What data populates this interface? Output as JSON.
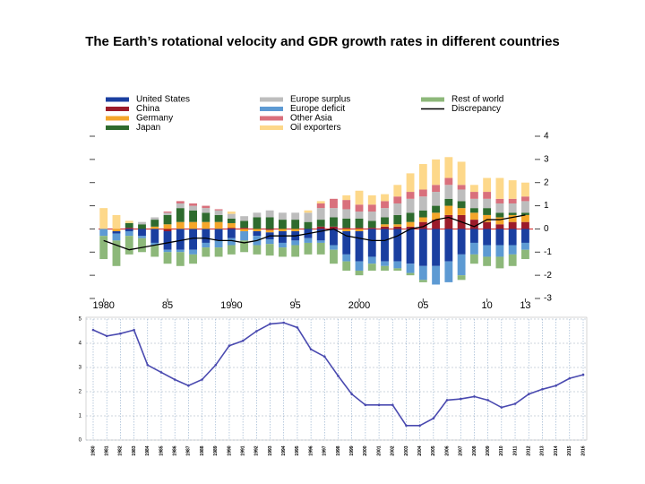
{
  "title": "The Earth’s rotational velocity and GDR growth rates in different countries",
  "chart_data": [
    {
      "type": "stacked_bar",
      "x": [
        1980,
        1981,
        1982,
        1983,
        1984,
        1985,
        1986,
        1987,
        1988,
        1989,
        1990,
        1991,
        1992,
        1993,
        1994,
        1995,
        1996,
        1997,
        1998,
        1999,
        2000,
        2001,
        2002,
        2003,
        2004,
        2005,
        2006,
        2007,
        2008,
        2009,
        2010,
        2011,
        2012,
        2013
      ],
      "xlim": [
        1979.6,
        2013.6
      ],
      "xticks": [
        1980,
        {
          "value": 1985,
          "label": "85"
        },
        1990,
        {
          "value": 1995,
          "label": "95"
        },
        2000,
        {
          "value": 2005,
          "label": "05"
        },
        {
          "value": 2010,
          "label": "10"
        },
        {
          "value": 2013,
          "label": "13"
        }
      ],
      "ylim": [
        -3,
        4
      ],
      "yticks": [
        -3,
        -2,
        -1,
        0,
        1,
        2,
        3,
        4
      ],
      "series": [
        {
          "name": "United States",
          "color": "#1a3fa0",
          "values": [
            0,
            -0.1,
            -0.1,
            -0.3,
            -0.6,
            -0.8,
            -0.9,
            -0.9,
            -0.6,
            -0.5,
            -0.4,
            0,
            -0.2,
            -0.3,
            -0.5,
            -0.4,
            -0.4,
            -0.5,
            -0.7,
            -1.0,
            -1.3,
            -1.2,
            -1.4,
            -1.4,
            -1.5,
            -1.6,
            -1.6,
            -1.4,
            -1.1,
            -0.6,
            -0.7,
            -0.7,
            -0.7,
            -0.6
          ]
        },
        {
          "name": "China",
          "color": "#9b1b2a",
          "values": [
            0,
            0,
            0.05,
            0,
            0,
            -0.1,
            0,
            0,
            0,
            0,
            0.05,
            0.05,
            0,
            -0.05,
            0,
            0,
            0,
            0.1,
            0.1,
            0.05,
            0.05,
            0.05,
            0.1,
            0.1,
            0.1,
            0.3,
            0.4,
            0.6,
            0.6,
            0.4,
            0.3,
            0.2,
            0.3,
            0.3
          ]
        },
        {
          "name": "Germany",
          "color": "#f4a62a",
          "values": [
            0,
            -0.1,
            0,
            0,
            0.1,
            0.2,
            0.3,
            0.3,
            0.3,
            0.3,
            0.2,
            -0.1,
            -0.1,
            -0.1,
            -0.1,
            -0.1,
            0,
            0,
            0,
            -0.1,
            -0.1,
            0,
            0.1,
            0.1,
            0.2,
            0.2,
            0.3,
            0.4,
            0.3,
            0.3,
            0.3,
            0.3,
            0.3,
            0.3
          ]
        },
        {
          "name": "Japan",
          "color": "#2e6b2e",
          "values": [
            0,
            0,
            0.2,
            0.2,
            0.3,
            0.4,
            0.6,
            0.5,
            0.4,
            0.3,
            0.2,
            0.3,
            0.5,
            0.5,
            0.4,
            0.4,
            0.3,
            0.3,
            0.4,
            0.4,
            0.4,
            0.3,
            0.3,
            0.4,
            0.4,
            0.3,
            0.3,
            0.3,
            0.3,
            0.2,
            0.3,
            0.2,
            0.1,
            0.1
          ]
        },
        {
          "name": "Europe surplus",
          "color": "#bdbdbd",
          "values": [
            0,
            0,
            0,
            0.1,
            0.1,
            0.1,
            0.2,
            0.2,
            0.2,
            0.2,
            0.2,
            0.2,
            0.2,
            0.3,
            0.3,
            0.3,
            0.4,
            0.5,
            0.4,
            0.4,
            0.3,
            0.4,
            0.4,
            0.5,
            0.6,
            0.6,
            0.6,
            0.6,
            0.5,
            0.4,
            0.4,
            0.4,
            0.4,
            0.5
          ]
        },
        {
          "name": "Europe deficit",
          "color": "#5d9ad3",
          "values": [
            -0.3,
            -0.3,
            -0.2,
            -0.1,
            -0.1,
            -0.1,
            -0.1,
            -0.2,
            -0.2,
            -0.3,
            -0.3,
            -0.4,
            -0.4,
            -0.2,
            -0.2,
            -0.2,
            -0.2,
            -0.1,
            -0.2,
            -0.3,
            -0.4,
            -0.3,
            -0.2,
            -0.3,
            -0.4,
            -0.6,
            -0.8,
            -0.9,
            -0.9,
            -0.5,
            -0.5,
            -0.5,
            -0.4,
            -0.3
          ]
        },
        {
          "name": "Other Asia",
          "color": "#d9707c",
          "values": [
            0,
            0,
            0,
            0,
            0,
            0.05,
            0.1,
            0.1,
            0.1,
            0.05,
            0,
            0,
            0,
            0,
            0,
            0,
            0,
            0.2,
            0.4,
            0.4,
            0.3,
            0.3,
            0.3,
            0.3,
            0.3,
            0.3,
            0.3,
            0.3,
            0.2,
            0.3,
            0.3,
            0.2,
            0.2,
            0.2
          ]
        },
        {
          "name": "Oil exporters",
          "color": "#fdd88a",
          "values": [
            0.9,
            0.6,
            0.1,
            0,
            0,
            0,
            0,
            0,
            0,
            0,
            0.1,
            0,
            0,
            0,
            0,
            0,
            0.1,
            0.1,
            0,
            0.2,
            0.6,
            0.4,
            0.3,
            0.5,
            0.8,
            1.1,
            1.1,
            0.9,
            1.0,
            0.3,
            0.6,
            0.9,
            0.8,
            0.6
          ]
        },
        {
          "name": "Rest of world",
          "color": "#8db87a",
          "values": [
            -1.0,
            -1.1,
            -0.8,
            -0.6,
            -0.5,
            -0.5,
            -0.6,
            -0.4,
            -0.4,
            -0.4,
            -0.4,
            -0.5,
            -0.4,
            -0.5,
            -0.4,
            -0.5,
            -0.5,
            -0.5,
            -0.6,
            -0.4,
            -0.2,
            -0.3,
            -0.2,
            -0.1,
            -0.1,
            -0.1,
            0,
            0,
            -0.2,
            -0.4,
            -0.4,
            -0.5,
            -0.5,
            -0.4
          ]
        }
      ],
      "line_series": {
        "name": "Discrepancy",
        "color": "#000000",
        "values": [
          -0.5,
          -0.7,
          -0.9,
          -0.8,
          -0.7,
          -0.6,
          -0.5,
          -0.4,
          -0.4,
          -0.5,
          -0.5,
          -0.6,
          -0.5,
          -0.3,
          -0.3,
          -0.3,
          -0.2,
          -0.1,
          0,
          -0.3,
          -0.4,
          -0.5,
          -0.5,
          -0.3,
          0,
          0.1,
          0.4,
          0.5,
          0.3,
          0.1,
          0.4,
          0.4,
          0.5,
          0.6
        ]
      }
    },
    {
      "type": "line",
      "categories": [
        "1980",
        "1981",
        "1982",
        "1983",
        "1984",
        "1985",
        "1986",
        "1987",
        "1988",
        "1989",
        "1990",
        "1991",
        "1992",
        "1993",
        "1994",
        "1995",
        "1996",
        "1997",
        "1998",
        "1999",
        "2000",
        "2001",
        "2002",
        "2003",
        "2004",
        "2005",
        "2006",
        "2007",
        "2008",
        "2009",
        "2010",
        "2011",
        "2012",
        "2013",
        "2014",
        "2015",
        "2016"
      ],
      "ylim": [
        0,
        5
      ],
      "yticks": [
        0,
        1,
        2,
        3,
        4,
        5
      ],
      "grid": true,
      "color": "#4a4ab0",
      "values": [
        4.55,
        4.3,
        4.4,
        4.55,
        3.1,
        2.8,
        2.5,
        2.25,
        2.5,
        3.1,
        3.9,
        4.1,
        4.5,
        4.8,
        4.85,
        4.65,
        3.75,
        3.45,
        2.65,
        1.9,
        1.45,
        1.45,
        1.45,
        0.6,
        0.6,
        0.9,
        1.65,
        1.7,
        1.8,
        1.65,
        1.35,
        1.5,
        1.9,
        2.1,
        2.25,
        2.55,
        2.7
      ]
    }
  ]
}
